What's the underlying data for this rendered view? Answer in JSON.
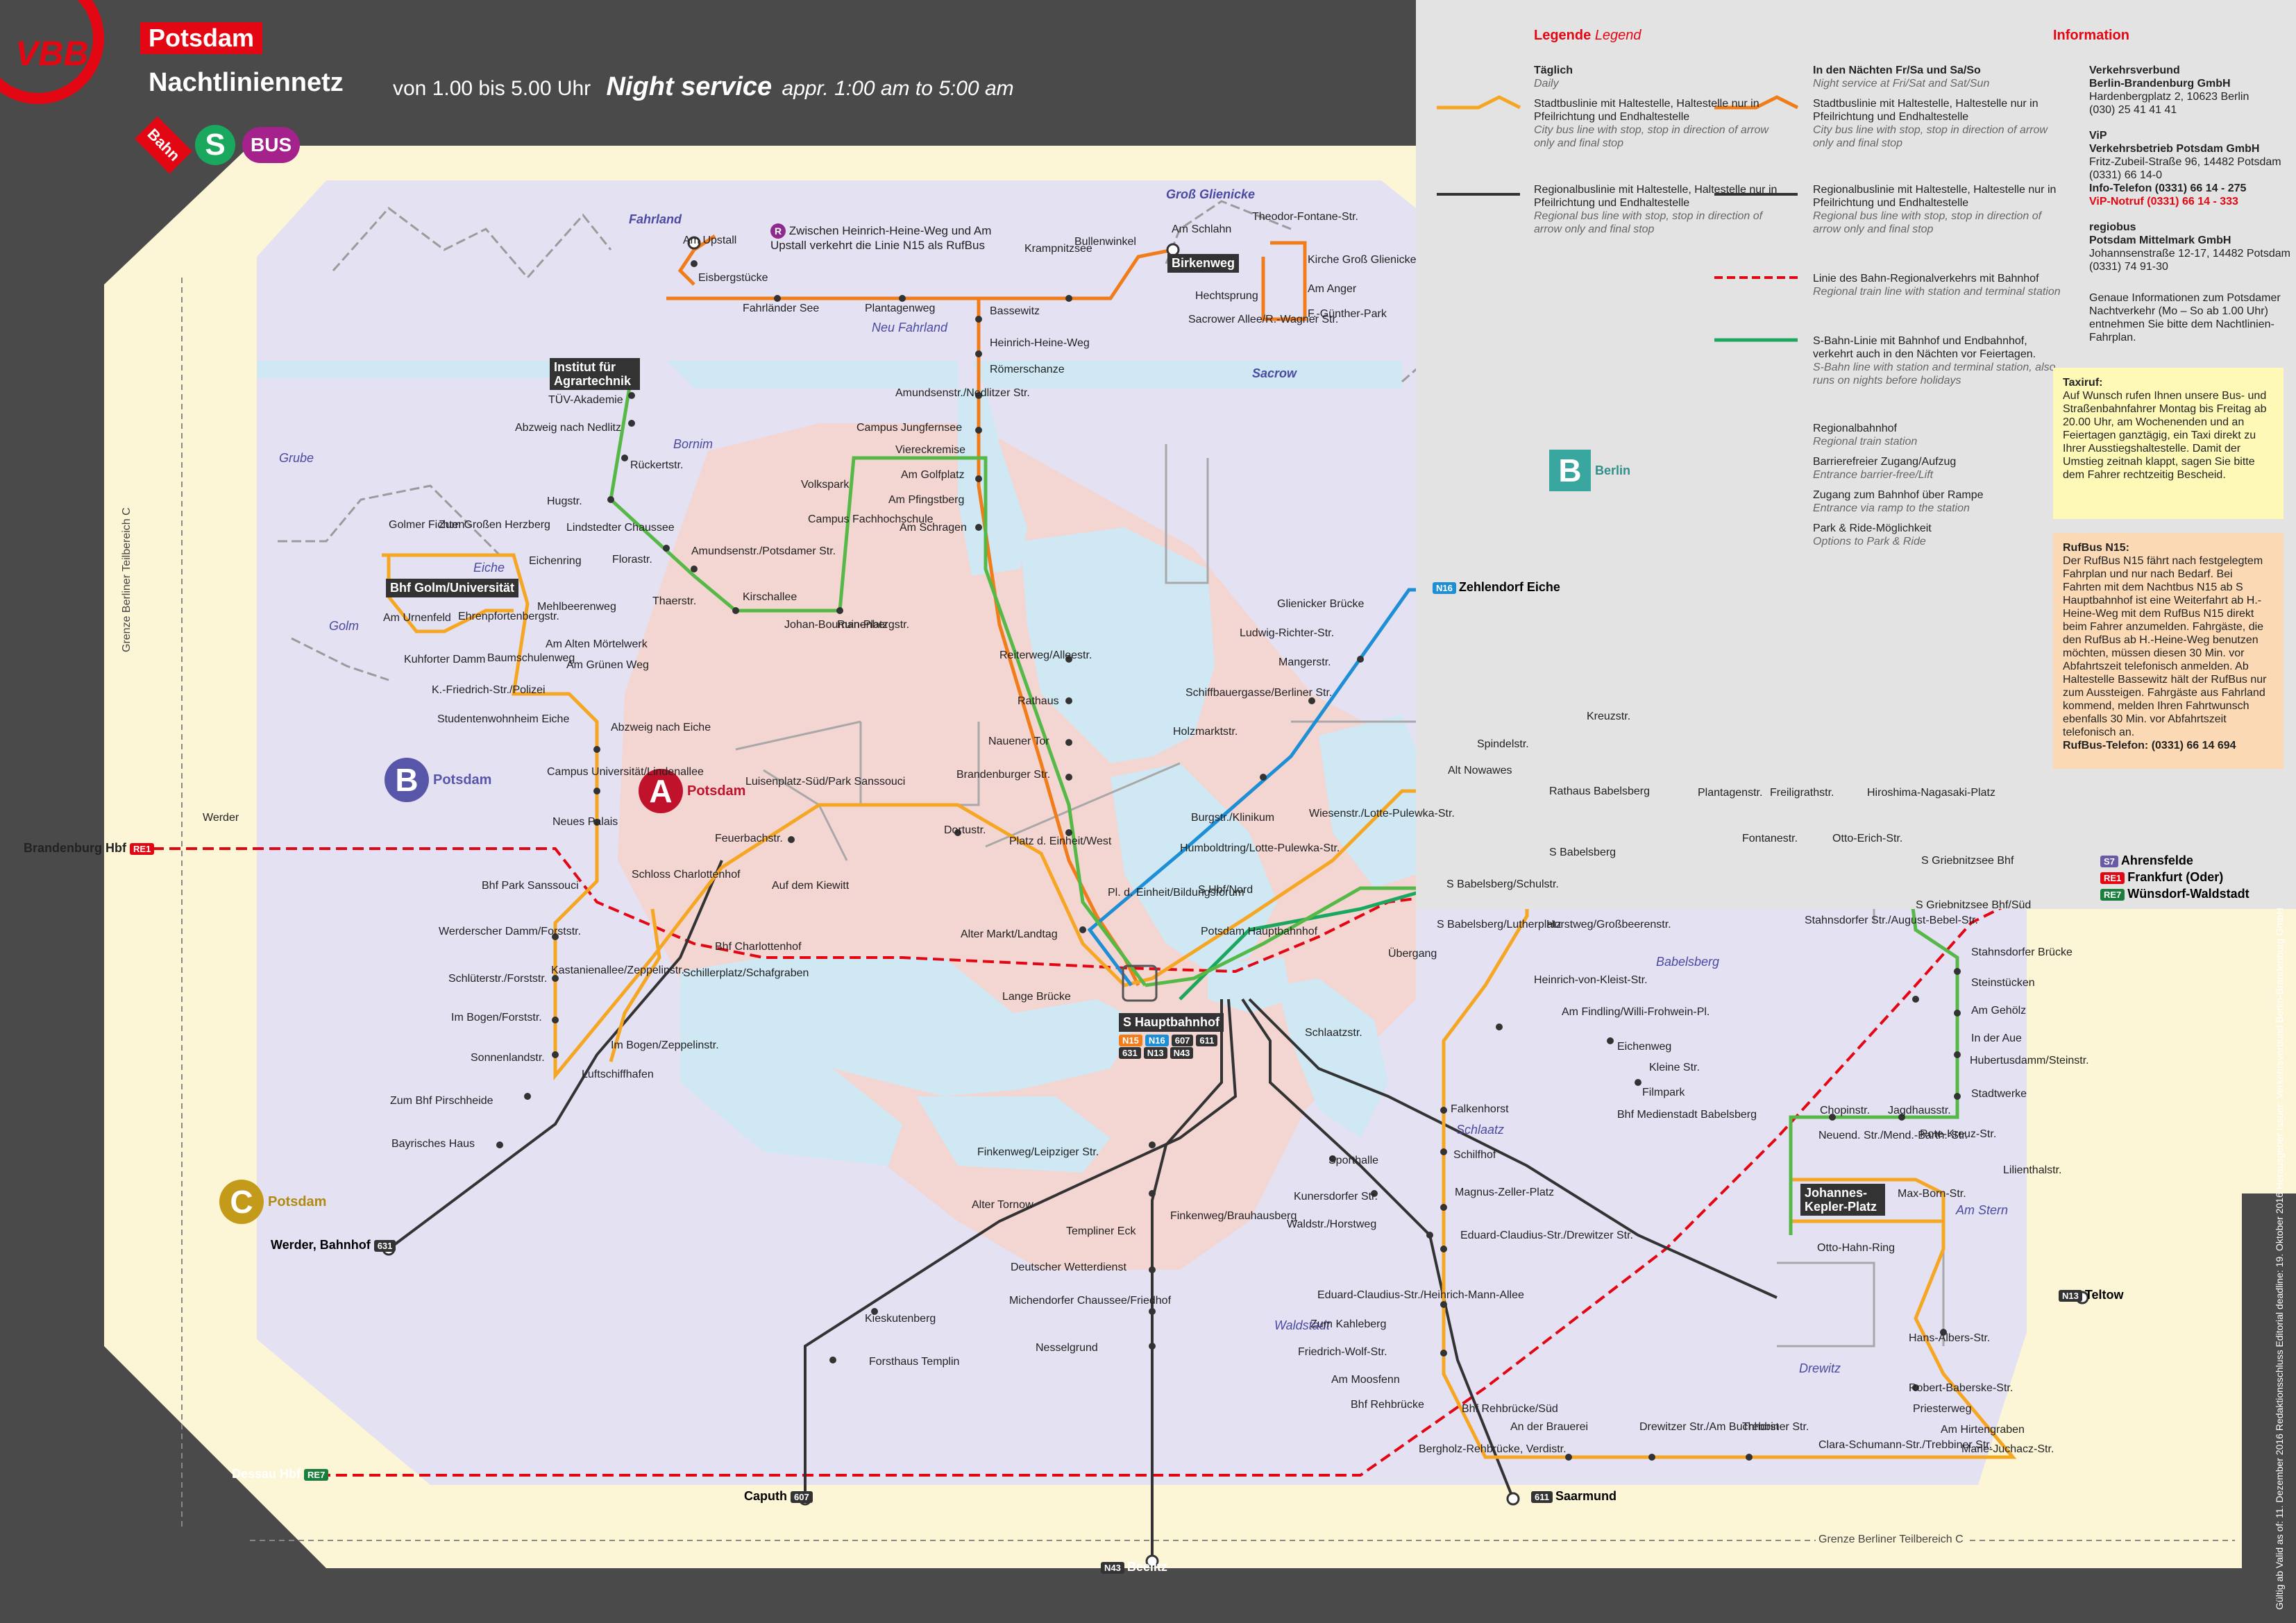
{
  "header": {
    "logo_text": "VBB",
    "city": "Potsdam",
    "network": "Nachtliniennetz",
    "hours_de": "von 1.00 bis 5.00 Uhr",
    "night_service": "Night service",
    "hours_en": "appr. 1:00 am to 5:00 am",
    "modes": [
      "Bahn",
      "S",
      "BUS"
    ]
  },
  "colors": {
    "accent_red": "#e30613",
    "n14": "#f5a623",
    "n15": "#f07d1a",
    "n16": "#1e8fd5",
    "n17": "#56b947",
    "regional_bus": "#333333",
    "rail_red": "#e30613",
    "sbahn_green": "#1aa85f"
  },
  "legend": {
    "title_de": "Legende",
    "title_en": "Legend",
    "daily_de": "Täglich",
    "daily_en": "Daily",
    "weekend_de": "In den Nächten Fr/Sa und Sa/So",
    "weekend_en": "Night service at Fri/Sat and Sat/Sun",
    "items": [
      {
        "de": "Stadtbuslinie mit Haltestelle, Haltestelle nur in Pfeilrichtung und Endhaltestelle",
        "en": "City bus line with stop, stop in direction of arrow only and final stop"
      },
      {
        "de": "Stadtbuslinie mit Haltestelle, Haltestelle nur in Pfeilrichtung und Endhaltestelle",
        "en": "City bus line with stop, stop in direction of arrow only and final stop"
      },
      {
        "de": "Regionalbuslinie mit Haltestelle, Haltestelle nur in Pfeilrichtung und Endhaltestelle",
        "en": "Regional bus line with stop, stop in direction of arrow only and final stop"
      },
      {
        "de": "Regionalbuslinie mit Haltestelle, Haltestelle nur in Pfeilrichtung und Endhaltestelle",
        "en": "Regional bus line with stop, stop in direction of arrow only and final stop"
      },
      {
        "de": "Linie des Bahn-Regionalverkehrs mit Bahnhof",
        "en": "Regional train line with station and terminal station"
      },
      {
        "de": "S-Bahn-Linie mit Bahnhof und Endbahnhof, verkehrt auch in den Nächten vor Feiertagen.",
        "en": "S-Bahn line with station and terminal station, also runs on nights before holidays"
      },
      {
        "de": "Regionalbahnhof",
        "en": "Regional train station"
      },
      {
        "de": "Barrierefreier Zugang/Aufzug",
        "en": "Entrance barrier-free/Lift"
      },
      {
        "de": "Zugang zum Bahnhof über Rampe",
        "en": "Entrance via ramp to the station"
      },
      {
        "de": "Park & Ride-Möglichkeit",
        "en": "Options to Park & Ride"
      }
    ]
  },
  "info": {
    "title": "Information",
    "vbb": [
      "Verkehrsverbund",
      "Berlin-Brandenburg GmbH",
      "Hardenbergplatz 2, 10623 Berlin",
      "(030) 25 41 41 41"
    ],
    "vip": [
      "ViP",
      "Verkehrsbetrieb Potsdam GmbH",
      "Fritz-Zubeil-Straße 96, 14482 Potsdam",
      "(0331) 66 14-0",
      "Info-Telefon (0331) 66 14 - 275",
      "ViP-Notruf (0331) 66 14 - 333"
    ],
    "regiobus": [
      "regiobus",
      "Potsdam Mittelmark GmbH",
      "Johannsenstraße 12-17, 14482 Potsdam",
      "(0331) 74 91-30"
    ],
    "note": "Genaue Informationen zum Potsdamer Nachtverkehr (Mo – So ab 1.00 Uhr) entnehmen Sie bitte dem Nachtlinien-Fahrplan.",
    "taxi_title": "Taxiruf:",
    "taxi_text": "Auf Wunsch rufen Ihnen unsere Bus- und Straßenbahnfahrer Montag bis Freitag ab 20.00 Uhr, am Wochenenden und an Feiertagen ganztägig, ein Taxi direkt zu Ihrer Ausstiegshaltestelle. Damit der Umstieg zeitnah klappt, sagen Sie bitte dem Fahrer rechtzeitig Bescheid.",
    "rufbus_title": "RufBus N15:",
    "rufbus_text": "Der RufBus N15 fährt nach festgelegtem Fahrplan und nur nach Bedarf. Bei Fahrten mit dem Nachtbus N15 ab S Hauptbahnhof ist eine Weiterfahrt ab H.-Heine-Weg mit dem RufBus N15 direkt beim Fahrer anzumelden. Fahrgäste, die den RufBus ab H.-Heine-Weg benutzen möchten, müssen diesen 30 Min. vor Abfahrtszeit telefonisch anmelden. Ab Haltestelle Bassewitz hält der RufBus nur zum Aussteigen. Fahrgäste aus Fahrland kommend, melden Ihren Fahrtwunsch ebenfalls 30 Min. vor Abfahrtszeit telefonisch an.",
    "rufbus_phone": "RufBus-Telefon: (0331) 66 14 694"
  },
  "zones": {
    "a": "Potsdam",
    "b_potsdam": "Potsdam",
    "b_berlin": "Berlin",
    "c": "Potsdam"
  },
  "boundary": "Grenze Berliner Teilbereich C",
  "footer": "Gültig ab Valid as of: 11. Dezember 2016  Redaktionsschluss Editorial deadline: 19. Oktober 2016  Herausgeber Issuer: Verkehrsverbund Berlin-Brandenburg GmbH",
  "map": {
    "areas": [
      "Fahrland",
      "Neu Fahrland",
      "Groß Glienicke",
      "Sacrow",
      "Grube",
      "Bornim",
      "Eiche",
      "Golm",
      "Babelsberg",
      "Am Stern",
      "Schlaatz",
      "Waldstadt",
      "Drewitz"
    ],
    "rufbus_note": "Zwischen Heinrich-Heine-Weg und Am Upstall verkehrt die Linie N15 als RufBus",
    "terminals": [
      {
        "label": "Zehlendorf Eiche",
        "line": "N16"
      },
      {
        "label": "Ahrensfelde",
        "line": "S7"
      },
      {
        "label": "Frankfurt (Oder)",
        "line": "RE1"
      },
      {
        "label": "Wünsdorf-Waldstadt",
        "line": "RE7"
      },
      {
        "label": "Teltow",
        "line": "N13"
      },
      {
        "label": "Brandenburg Hbf",
        "line": "RE1"
      },
      {
        "label": "Dessau Hbf",
        "line": "RE7"
      },
      {
        "label": "Beelitz",
        "line": "N43"
      },
      {
        "label": "Saarmund",
        "line": "611"
      },
      {
        "label": "Werder, Bahnhof",
        "line": "631"
      },
      {
        "label": "Caputh",
        "line": "607"
      }
    ],
    "hubs": [
      "S Hauptbahnhof",
      "Bhf Golm/Universität",
      "Institut für Agrartechnik",
      "Birkenweg",
      "Johannes-Kepler-Platz"
    ],
    "hub_lines": [
      "N15",
      "N16",
      "607",
      "611",
      "631",
      "N13",
      "N43"
    ],
    "stops": [
      "Am Upstall",
      "Eisbergstücke",
      "Fahrländer See",
      "Plantagenweg",
      "Krampnitzsee",
      "Bullenwinkel",
      "Am Schlahn",
      "Theodor-Fontane-Str.",
      "Kirche Groß Glienicke",
      "Hechtsprung",
      "Am Anger",
      "Sacrower Allee/R.-Wagner Str.",
      "F.-Günther-Park",
      "Bassewitz",
      "Heinrich-Heine-Weg",
      "Römerschanze",
      "TÜV-Akademie",
      "Abzweig nach Nedlitz",
      "Rückertstr.",
      "Hugstr.",
      "Lindstedter Chaussee",
      "Florastr.",
      "Amundsenstr./Potsdamer Str.",
      "Kirschallee",
      "Thaerstr.",
      "Johan-Bouman-Platz",
      "Ruinenbergstr.",
      "Amundsenstr./Nedlitzer Str.",
      "Campus Jungfernsee",
      "Viereckremise",
      "Volkspark",
      "Am Golfplatz",
      "Campus Fachhochschule",
      "Am Pfingstberg",
      "Am Schragen",
      "Golmer Fichten",
      "Zum Großen Herzberg",
      "Eichenring",
      "Mehlbeerenweg",
      "Am Urnenfeld",
      "Ehrenpfortenbergstr.",
      "Am Alten Mörtelwerk",
      "Kuhforter Damm",
      "Baumschulenweg",
      "Am Grünen Weg",
      "K.-Friedrich-Str./Polizei",
      "Studentenwohnheim Eiche",
      "Abzweig nach Eiche",
      "Campus Universität/Lindenallee",
      "Neues Palais",
      "Luisenplatz-Süd/Park Sanssouci",
      "Feuerbachstr.",
      "Dortustr.",
      "Bhf Park Sanssouci",
      "Schloss Charlottenhof",
      "Auf dem Kiewitt",
      "Bhf Charlottenhof",
      "Werderscher Damm/Forststr.",
      "Kastanienallee/Zeppelinstr.",
      "Schillerplatz/Schafgraben",
      "Schlüterstr./Forststr.",
      "Im Bogen/Forststr.",
      "Im Bogen/Zeppelinstr.",
      "Sonnenlandstr.",
      "Luftschiffhafen",
      "Zum Bhf Pirschheide",
      "Bayrisches Haus",
      "Werder",
      "Reiterweg/Alleestr.",
      "Rathaus",
      "Nauener Tor",
      "Brandenburger Str.",
      "Platz d. Einheit/West",
      "Pl. d. Einheit/Bildungsforum",
      "Alter Markt/Landtag",
      "Lange Brücke",
      "Potsdam Hauptbahnhof",
      "Glienicker Brücke",
      "Ludwig-Richter-Str.",
      "Mangerstr.",
      "Schiffbauergasse/Berliner Str.",
      "Holzmarktstr.",
      "Burgstr./Klinikum",
      "Humboldtring/Lotte-Pulewka-Str.",
      "S Hbf/Nord",
      "Wiesenstr./Lotte-Pulewka-Str.",
      "Alt Nowawes",
      "Spindelstr.",
      "Kreuzstr.",
      "Rathaus Babelsberg",
      "S Babelsberg",
      "Plantagenstr.",
      "Freiligrathstr.",
      "Hiroshima-Nagasaki-Platz",
      "Fontanestr.",
      "Otto-Erich-Str.",
      "S Griebnitzsee Bhf",
      "S Babelsberg/Schulstr.",
      "S Babelsberg/Lutherplatz",
      "Horstweg/Großbeerenstr.",
      "Stahnsdorfer Str./August-Bebel-Str.",
      "S Griebnitzsee Bhf/Süd",
      "Übergang",
      "Schlaatzstr.",
      "Heinrich-von-Kleist-Str.",
      "Am Findling/Willi-Frohwein-Pl.",
      "Eichenweg",
      "Kleine Str.",
      "Filmpark",
      "Bhf Medienstadt Babelsberg",
      "Lilienthalstr.",
      "Stahnsdorfer Brücke",
      "Steinstücken",
      "Am Gehölz",
      "In der Aue",
      "Hubertusdamm/Steinstr.",
      "Stadtwerke",
      "Rote-Kreuz-Str.",
      "Chopinstr.",
      "Jagdhausstr.",
      "Neuend. Str./Mend.-Barth.-Str.",
      "Max-Born-Str.",
      "Otto-Hahn-Ring",
      "Falkenhorst",
      "Schilfhof",
      "Magnus-Zeller-Platz",
      "Eduard-Claudius-Str./Drewitzer Str.",
      "Eduard-Claudius-Str./Heinrich-Mann-Allee",
      "Zum Kahleberg",
      "Friedrich-Wolf-Str.",
      "Am Moosfenn",
      "Bhf Rehbrücke",
      "Bhf Rehbrücke/Süd",
      "An der Brauerei",
      "Drewitzer Str./Am Buchhorst",
      "Trebbiner Str.",
      "Bergholz-Rehbrücke, Verdistr.",
      "Clara-Schumann-Str./Trebbiner Str.",
      "Marie-Juchacz-Str.",
      "Am Hirtengraben",
      "Priesterweg",
      "Robert-Baberske-Str.",
      "Hans-Albers-Str.",
      "Sporthalle",
      "Kunersdorfer Str.",
      "Waldstr./Horstweg",
      "Finkenweg/Leipziger Str.",
      "Alter Tornow",
      "Templiner Eck",
      "Finkenweg/Brauhausberg",
      "Deutscher Wetterdienst",
      "Michendorfer Chaussee/Friedhof",
      "Nesselgrund",
      "Kieskutenberg",
      "Forsthaus Templin"
    ]
  }
}
